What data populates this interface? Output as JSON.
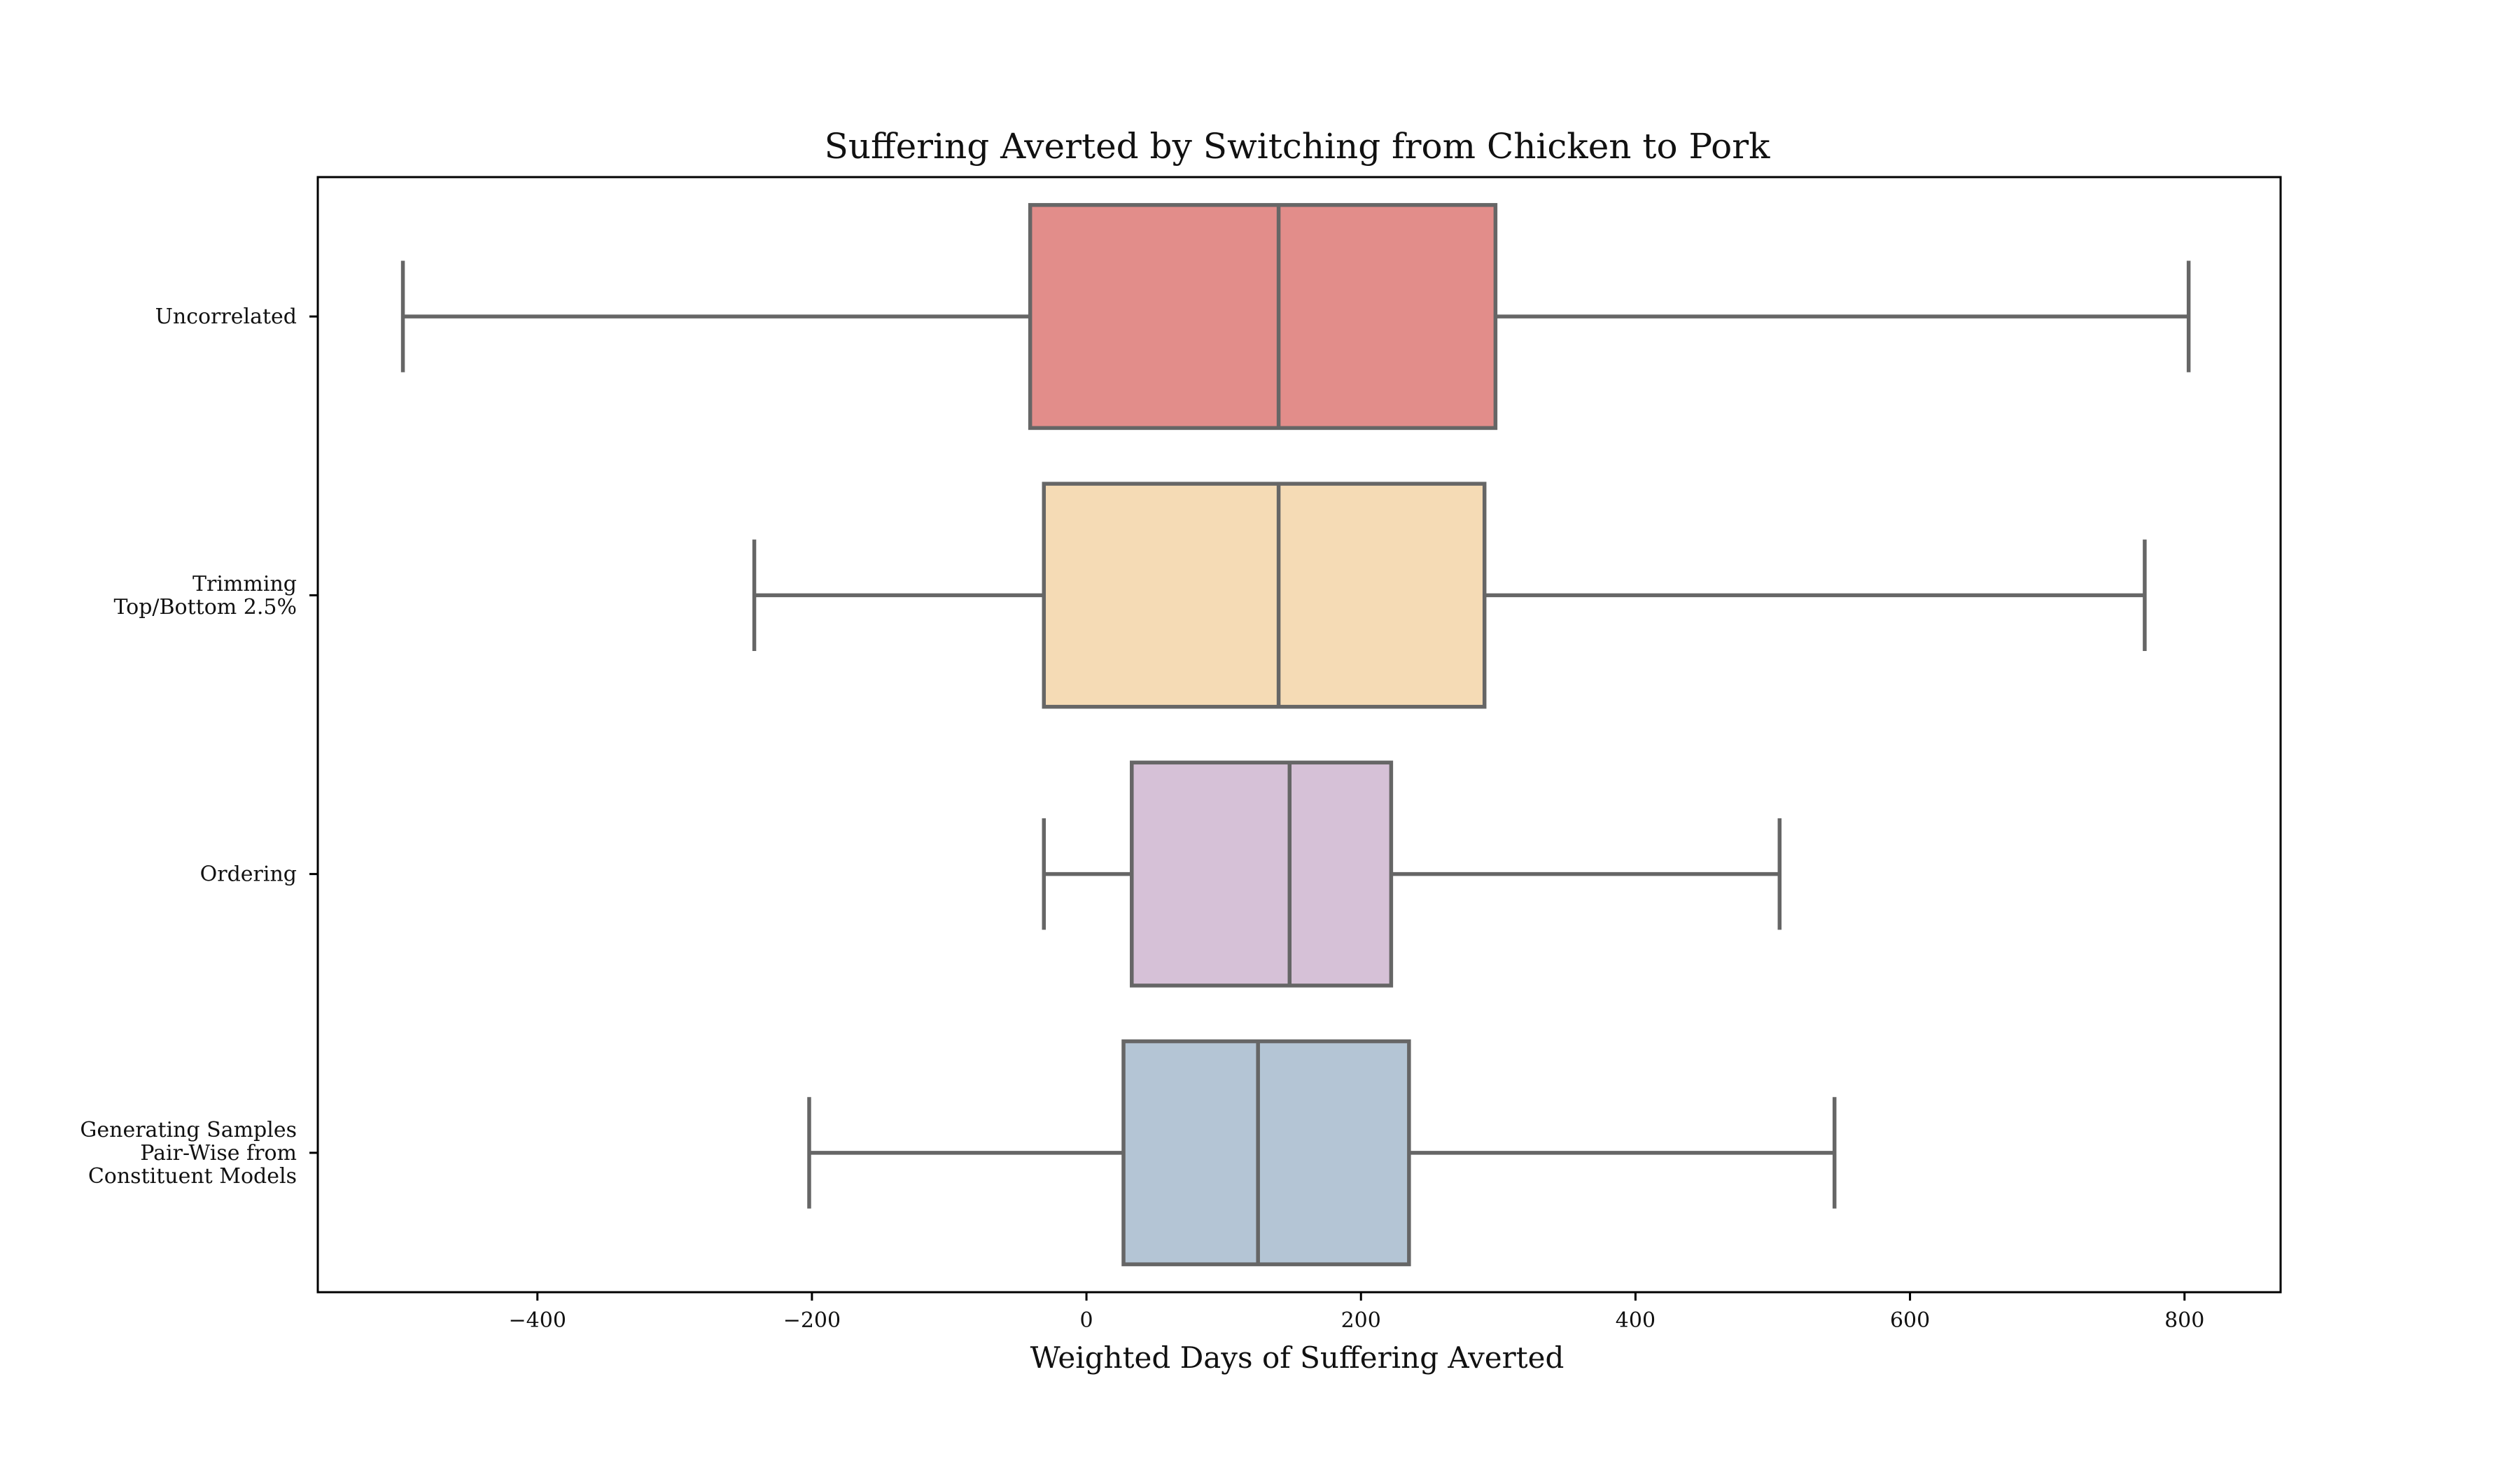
{
  "chart_data": {
    "type": "boxplot",
    "orientation": "horizontal",
    "title": "Suffering Averted by Switching from Chicken to Pork",
    "xlabel": "Weighted Days of Suffering Averted",
    "ylabel": "",
    "xlim": [
      -560,
      870
    ],
    "xticks": [
      -400,
      -200,
      0,
      200,
      400,
      600,
      800
    ],
    "xtick_labels": [
      "−400",
      "−200",
      "0",
      "200",
      "400",
      "600",
      "800"
    ],
    "grid": false,
    "categories": [
      [
        "Uncorrelated"
      ],
      [
        "Trimming",
        "Top/Bottom 2.5%"
      ],
      [
        "Ordering"
      ],
      [
        "Generating Samples",
        "Pair-Wise from",
        "Constituent Models"
      ]
    ],
    "series": [
      {
        "whisker_low": -498,
        "q1": -41,
        "median": 140,
        "q3": 298,
        "whisker_high": 803,
        "color": "#e28d8a"
      },
      {
        "whisker_low": -242,
        "q1": -31,
        "median": 140,
        "q3": 290,
        "whisker_high": 771,
        "color": "#f5dbb5"
      },
      {
        "whisker_low": -31,
        "q1": 33,
        "median": 148,
        "q3": 222,
        "whisker_high": 505,
        "color": "#d6c1d7"
      },
      {
        "whisker_low": -202,
        "q1": 27,
        "median": 125,
        "q3": 235,
        "whisker_high": 545,
        "color": "#b4c5d5"
      }
    ],
    "box_edge_color": "#666666"
  }
}
